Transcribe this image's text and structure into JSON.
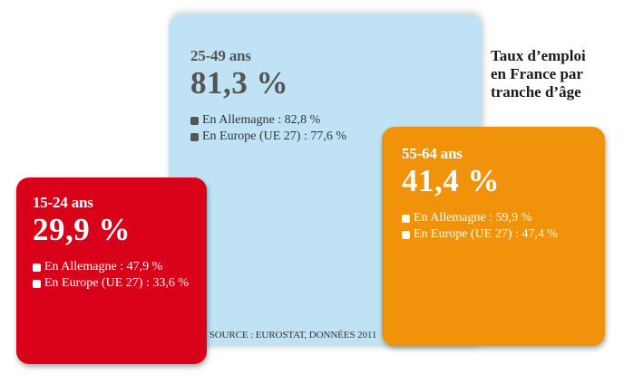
{
  "chart_data": {
    "type": "bar",
    "title": "Taux d’emploi en France par tranche d’âge",
    "source": "SOURCE : EUROSTAT, DONNÉES 2011",
    "unit": "%",
    "categories": [
      "15-24 ans",
      "25-49 ans",
      "55-64 ans"
    ],
    "series": [
      {
        "name": "France",
        "values": [
          29.9,
          81.3,
          41.4
        ]
      },
      {
        "name": "En Allemagne",
        "values": [
          47.9,
          82.8,
          59.9
        ]
      },
      {
        "name": "En Europe (UE 27)",
        "values": [
          33.6,
          77.6,
          47.4
        ]
      }
    ],
    "colors": {
      "15-24 ans": "#d9001a",
      "25-49 ans": "#bfe3f5",
      "55-64 ans": "#f0920a"
    }
  },
  "title_lines": [
    "Taux d’emploi",
    "en France par",
    "tranche d’âge"
  ],
  "groups": [
    {
      "age": "15-24 ans",
      "value": "29,9 %",
      "legend": [
        "En Allemagne : 47,9 %",
        "En Europe (UE 27) : 33,6 %"
      ]
    },
    {
      "age": "25-49 ans",
      "value": "81,3 %",
      "legend": [
        "En Allemagne : 82,8 %",
        "En Europe (UE 27) : 77,6 %"
      ]
    },
    {
      "age": "55-64 ans",
      "value": "41,4 %",
      "legend": [
        "En Allemagne : 59,9 %",
        "En Europe (UE 27) : 47,4 %"
      ]
    }
  ],
  "source": "SOURCE : EUROSTAT, DONNÉES 2011"
}
